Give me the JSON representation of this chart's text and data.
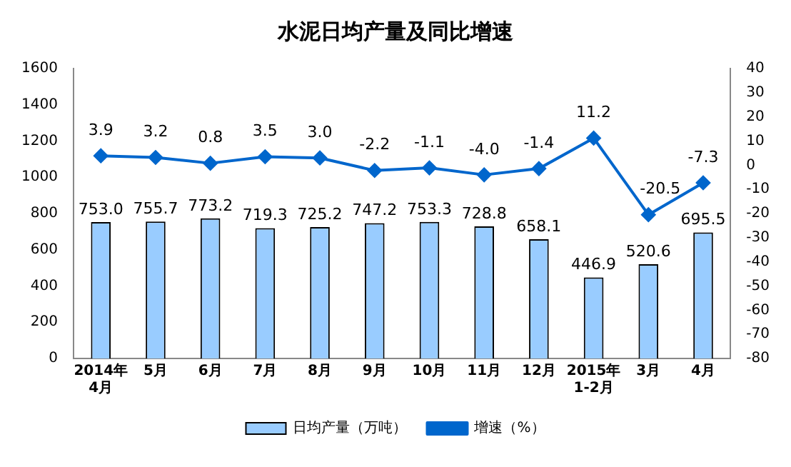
{
  "chart_data": {
    "type": "bar",
    "title": "水泥日均产量及同比增速",
    "categories": [
      "2014年\n4月",
      "5月",
      "6月",
      "7月",
      "8月",
      "9月",
      "10月",
      "11月",
      "12月",
      "2015年\n1-2月",
      "3月",
      "4月"
    ],
    "series": [
      {
        "name": "日均产量（万吨）",
        "color": "#99ccff",
        "values": [
          753,
          755.7,
          773.2,
          719.3,
          725.2,
          747.2,
          753.3,
          728.8,
          658.1,
          446.9,
          520.6,
          695.5
        ],
        "value_labels": [
          "753.0",
          "755.7",
          "773.2",
          "719.3",
          "725.2",
          "747.2",
          "753.3",
          "728.8",
          "658.1",
          "446.9",
          "520.6",
          "695.5"
        ]
      },
      {
        "name": "增速（%）",
        "type": "line",
        "axis": "y2",
        "color": "#0066cc",
        "values": [
          3.9,
          3.2,
          0.8,
          3.5,
          3,
          -2.2,
          -1.1,
          -4,
          -1.4,
          11.2,
          -20.5,
          -7.3
        ],
        "value_labels": [
          "3.9",
          "3.2",
          "0.8",
          "3.5",
          "3.0",
          "-2.2",
          "-1.1",
          "-4.0",
          "-1.4",
          "11.2",
          "-20.5",
          "-7.3"
        ]
      }
    ],
    "ylim": [
      0,
      1600
    ],
    "yticks": [
      0,
      200,
      400,
      600,
      800,
      1000,
      1200,
      1400,
      1600
    ],
    "y2lim": [
      -80,
      40
    ],
    "y2ticks": [
      -80,
      -70,
      -60,
      -50,
      -40,
      -30,
      -20,
      -10,
      0,
      10,
      20,
      30,
      40
    ],
    "legend": "bottom",
    "grid": false,
    "marker": "diamond"
  }
}
